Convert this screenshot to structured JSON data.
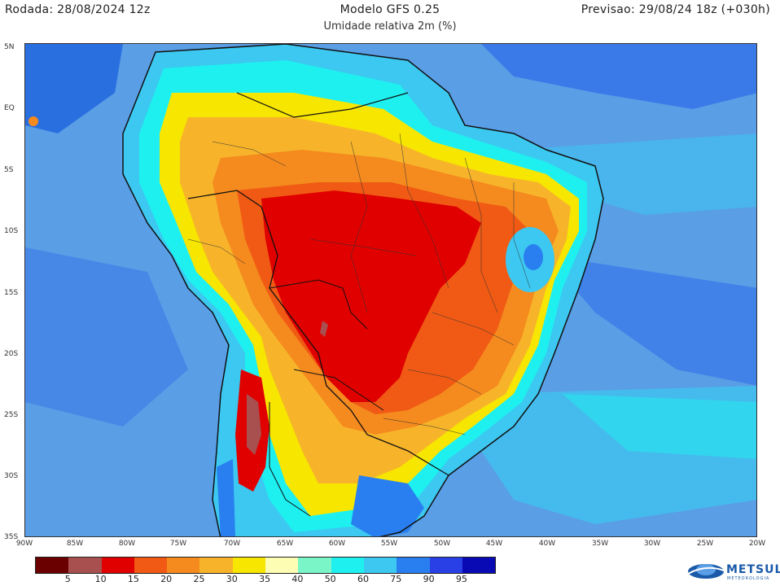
{
  "header": {
    "left": "Rodada: 28/08/2024 12z",
    "center": "Modelo GFS 0.25",
    "subtitle": "Umidade relativa 2m (%)",
    "right": "Previsao: 29/08/24 18z (+030h)"
  },
  "lat_labels": [
    "5N",
    "EQ",
    "5S",
    "10S",
    "15S",
    "20S",
    "25S",
    "30S",
    "35S"
  ],
  "lon_labels": [
    "90W",
    "85W",
    "80W",
    "75W",
    "70W",
    "65W",
    "60W",
    "55W",
    "50W",
    "45W",
    "40W",
    "35W",
    "30W",
    "25W",
    "20W"
  ],
  "colorbar": {
    "colors": [
      "#6b0000",
      "#a85050",
      "#e00000",
      "#f05a14",
      "#f58a1e",
      "#f7b42a",
      "#f7e600",
      "#fdfdb4",
      "#7af5c8",
      "#1ef0f0",
      "#3cc8f0",
      "#2a7ff0",
      "#2840e6",
      "#0a0ab4"
    ],
    "labels": [
      "5",
      "10",
      "15",
      "20",
      "25",
      "30",
      "35",
      "40",
      "50",
      "60",
      "75",
      "90",
      "95"
    ]
  },
  "logo": {
    "name": "METSUL",
    "tagline": "METEOROLOGIA"
  }
}
